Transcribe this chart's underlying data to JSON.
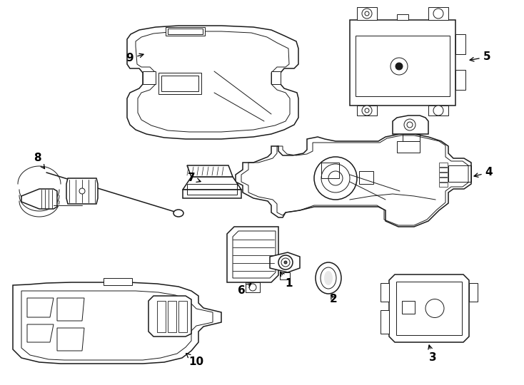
{
  "bg_color": "#ffffff",
  "line_color": "#1a1a1a",
  "lw": 1.1,
  "lw2": 0.7,
  "fig_width": 7.34,
  "fig_height": 5.4,
  "dpi": 100
}
